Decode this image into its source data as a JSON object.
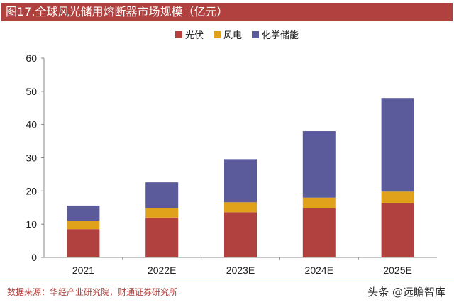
{
  "header": {
    "title": "图17.全球风光储用熔断器市场规模（亿元）"
  },
  "colors": {
    "title_bg": "#b0413e",
    "series_pv": "#b0413e",
    "series_wind": "#e0a11b",
    "series_storage": "#5b5b9b"
  },
  "chart_data": {
    "type": "bar",
    "stacked": true,
    "title": "",
    "xlabel": "",
    "ylabel": "",
    "categories": [
      "2021",
      "2022E",
      "2023E",
      "2024E",
      "2025E"
    ],
    "series": [
      {
        "name": "光伏",
        "color": "#b0413e",
        "values": [
          8.5,
          12.0,
          13.6,
          14.8,
          16.3
        ]
      },
      {
        "name": "风电",
        "color": "#e0a11b",
        "values": [
          2.6,
          2.8,
          3.0,
          3.2,
          3.5
        ]
      },
      {
        "name": "化学储能",
        "color": "#5b5b9b",
        "values": [
          4.5,
          7.8,
          13.0,
          20.0,
          28.2
        ]
      }
    ],
    "ylim": [
      0,
      60
    ],
    "yticks": [
      0,
      10,
      20,
      30,
      40,
      50,
      60
    ],
    "grid": false,
    "legend_position": "top-center"
  },
  "footer": {
    "source": "数据来源：华经产业研究院，财通证券研究所",
    "watermark": "头条 @远瞻智库"
  }
}
